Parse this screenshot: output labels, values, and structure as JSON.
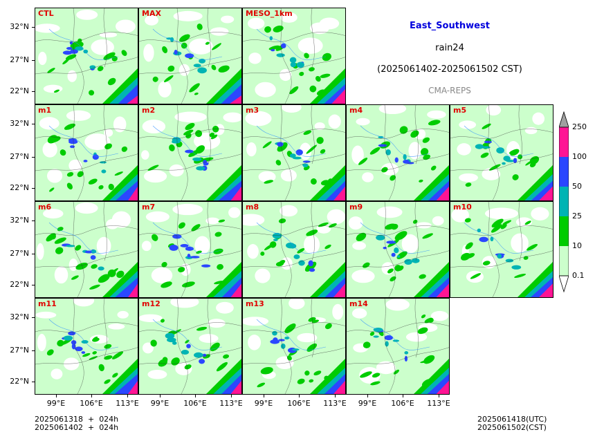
{
  "title": {
    "region": "East_Southwest",
    "variable": "rain24",
    "period": "(2025061402-2025061502 CST)",
    "model": "CMA-REPS"
  },
  "colors": {
    "region_title": "#0000dd",
    "panel_label": "#e00000",
    "model_label": "#888888"
  },
  "panels": [
    {
      "label": "CTL",
      "row": 0,
      "col": 0
    },
    {
      "label": "MAX",
      "row": 0,
      "col": 1
    },
    {
      "label": "MESO_1km",
      "row": 0,
      "col": 2
    },
    {
      "label": "m1",
      "row": 1,
      "col": 0
    },
    {
      "label": "m2",
      "row": 1,
      "col": 1
    },
    {
      "label": "m3",
      "row": 1,
      "col": 2
    },
    {
      "label": "m4",
      "row": 1,
      "col": 3
    },
    {
      "label": "m5",
      "row": 1,
      "col": 4
    },
    {
      "label": "m6",
      "row": 2,
      "col": 0
    },
    {
      "label": "m7",
      "row": 2,
      "col": 1
    },
    {
      "label": "m8",
      "row": 2,
      "col": 2
    },
    {
      "label": "m9",
      "row": 2,
      "col": 3
    },
    {
      "label": "m10",
      "row": 2,
      "col": 4
    },
    {
      "label": "m11",
      "row": 3,
      "col": 0
    },
    {
      "label": "m12",
      "row": 3,
      "col": 1
    },
    {
      "label": "m13",
      "row": 3,
      "col": 2
    },
    {
      "label": "m14",
      "row": 3,
      "col": 3
    }
  ],
  "y_ticks": [
    "32°N",
    "27°N",
    "22°N"
  ],
  "x_ticks": [
    "99°E",
    "106°E",
    "113°E"
  ],
  "colorbar": {
    "ticks": [
      "0.1",
      "10",
      "25",
      "50",
      "100",
      "250"
    ],
    "colors": [
      "#ccffcc",
      "#00cc00",
      "#00b4b4",
      "#2b47ff",
      "#ff1494"
    ],
    "under_color": "#ffffff",
    "over_color": "#a0a0a0"
  },
  "footer": {
    "left_line1": "2025061318  +  024h",
    "left_line2": "2025061402  +  024h",
    "right_line1": "2025061418(UTC)",
    "right_line2": "2025061502(CST)"
  }
}
